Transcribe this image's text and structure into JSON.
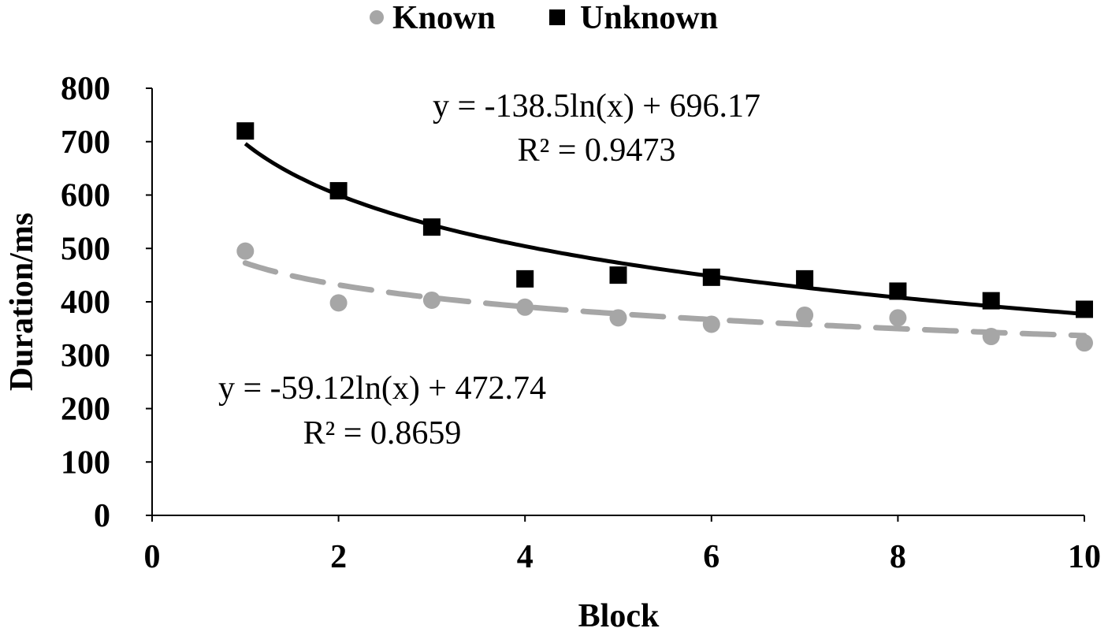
{
  "chart_data": {
    "type": "scatter",
    "xlabel": "Block",
    "ylabel": "Duration/ms",
    "xlim": [
      0,
      10
    ],
    "ylim": [
      0,
      800
    ],
    "xticks": [
      0,
      2,
      4,
      6,
      8,
      10
    ],
    "yticks": [
      0,
      100,
      200,
      300,
      400,
      500,
      600,
      700,
      800
    ],
    "grid": false,
    "legend_position": "top-center",
    "series": [
      {
        "name": "Known",
        "marker": "circle",
        "color": "#a6a6a6",
        "x": [
          1,
          2,
          3,
          4,
          5,
          6,
          7,
          8,
          9,
          10
        ],
        "y": [
          495,
          398,
          403,
          390,
          370,
          358,
          375,
          370,
          335,
          323
        ],
        "trendline": {
          "type": "logarithmic",
          "a": -59.12,
          "b": 472.74,
          "style": "dashed",
          "equation": "y = -59.12ln(x)  + 472.74",
          "r2": "R² = 0.8659"
        }
      },
      {
        "name": "Unknown",
        "marker": "square",
        "color": "#000000",
        "x": [
          1,
          2,
          3,
          4,
          5,
          6,
          7,
          8,
          9,
          10
        ],
        "y": [
          720,
          608,
          540,
          443,
          450,
          446,
          443,
          420,
          402,
          386
        ],
        "trendline": {
          "type": "logarithmic",
          "a": -138.5,
          "b": 696.17,
          "style": "solid",
          "equation": "y = -138.5ln(x)  + 696.17",
          "r2": "R² = 0.9473"
        }
      }
    ]
  }
}
